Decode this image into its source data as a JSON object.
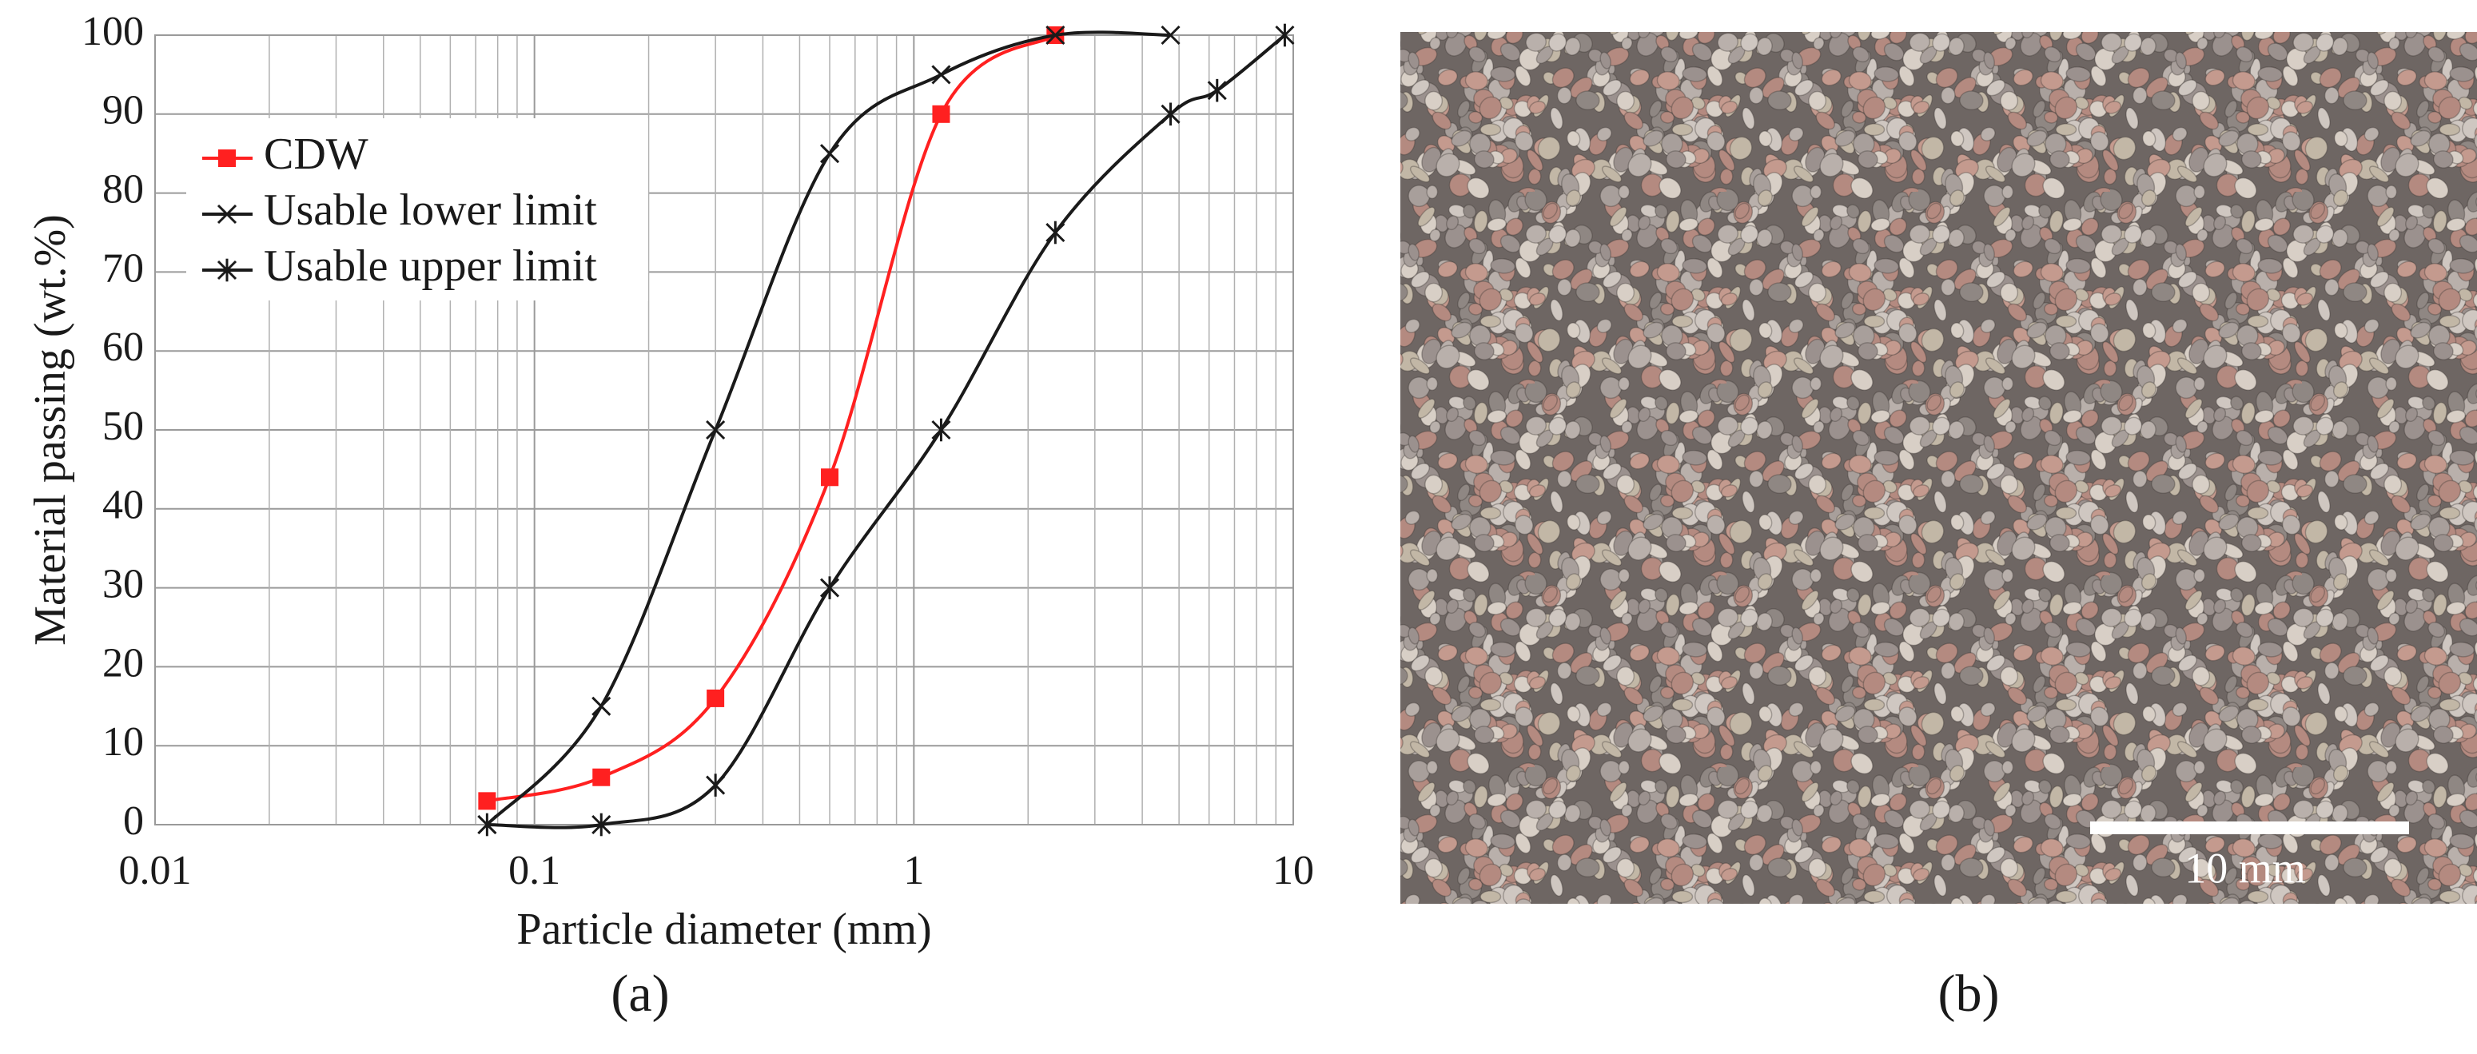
{
  "chart_data": {
    "type": "line",
    "xlabel": "Particle diameter (mm)",
    "ylabel": "Material passing (wt.%)",
    "xscale": "log",
    "xlim": [
      0.01,
      10
    ],
    "ylim": [
      0,
      100
    ],
    "xticks": [
      0.01,
      0.1,
      1,
      10
    ],
    "yticks": [
      0,
      10,
      20,
      30,
      40,
      50,
      60,
      70,
      80,
      90,
      100
    ],
    "grid": true,
    "minor_grid": true,
    "smooth": true,
    "legend": "upper left",
    "series": [
      {
        "name": "CDW",
        "color": "#ff2020",
        "marker": "square",
        "x": [
          0.075,
          0.15,
          0.3,
          0.6,
          1.18,
          2.36
        ],
        "values": [
          3,
          6,
          16,
          44,
          90,
          100
        ]
      },
      {
        "name": "Usable lower limit",
        "color": "#1a1a1a",
        "marker": "x",
        "x": [
          0.075,
          0.15,
          0.3,
          0.6,
          1.18,
          2.36,
          4.75
        ],
        "values": [
          0,
          15,
          50,
          85,
          95,
          100,
          100
        ]
      },
      {
        "name": "Usable upper limit",
        "color": "#1a1a1a",
        "marker": "asterisk",
        "x": [
          0.075,
          0.15,
          0.3,
          0.6,
          1.18,
          2.36,
          4.75,
          6.3,
          9.5
        ],
        "values": [
          0,
          0,
          5,
          30,
          50,
          75,
          90,
          93,
          100
        ]
      }
    ],
    "panel_label": "(a)"
  },
  "photo": {
    "scale_bar_label": "10 mm",
    "panel_label": "(b)"
  }
}
